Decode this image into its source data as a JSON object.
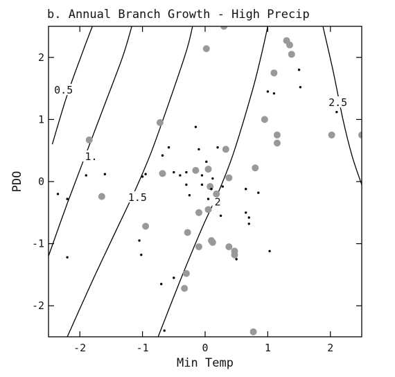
{
  "chart_data": {
    "type": "scatter",
    "title": "b. Annual Branch Growth - High Precip",
    "xlabel": "Min Temp",
    "ylabel": "PDO",
    "xlim": [
      -2.5,
      2.5
    ],
    "ylim": [
      -2.5,
      2.5
    ],
    "xticks": [
      -2,
      -1,
      0,
      1,
      2
    ],
    "yticks": [
      -2,
      -1,
      0,
      1,
      2
    ],
    "xtick_labels": [
      "-2",
      "-1",
      "0",
      "1",
      "2"
    ],
    "ytick_labels": [
      "-2",
      "-1",
      "0",
      "1",
      "2"
    ],
    "grid": false,
    "colors": {
      "large_points": "#999999",
      "small_points": "#000000",
      "contours": "#000000"
    },
    "contours": [
      {
        "label": "0.5",
        "label_at": [
          -2.26,
          1.45
        ],
        "points": [
          [
            -2.44,
            0.6
          ],
          [
            -2.2,
            1.4
          ],
          [
            -1.95,
            2.1
          ],
          [
            -1.8,
            2.5
          ]
        ]
      },
      {
        "label": "1.",
        "label_at": [
          -1.82,
          0.38
        ],
        "points": [
          [
            -2.5,
            -1.2
          ],
          [
            -2.2,
            -0.35
          ],
          [
            -1.9,
            0.45
          ],
          [
            -1.6,
            1.25
          ],
          [
            -1.32,
            2.0
          ],
          [
            -1.17,
            2.5
          ]
        ]
      },
      {
        "label": "1.5",
        "label_at": [
          -1.08,
          -0.28
        ],
        "points": [
          [
            -2.2,
            -2.5
          ],
          [
            -1.8,
            -1.6
          ],
          [
            -1.45,
            -0.85
          ],
          [
            -1.1,
            -0.1
          ],
          [
            -0.85,
            0.5
          ],
          [
            -0.55,
            1.35
          ],
          [
            -0.3,
            2.1
          ],
          [
            -0.2,
            2.5
          ]
        ]
      },
      {
        "label": "2",
        "label_at": [
          0.2,
          -0.35
        ],
        "points": [
          [
            -0.75,
            -2.5
          ],
          [
            -0.4,
            -1.6
          ],
          [
            -0.05,
            -0.75
          ],
          [
            0.2,
            -0.2
          ],
          [
            0.45,
            0.45
          ],
          [
            0.75,
            1.45
          ],
          [
            0.9,
            2.05
          ],
          [
            1.0,
            2.5
          ]
        ]
      },
      {
        "label": "2.5",
        "label_at": [
          2.12,
          1.25
        ],
        "points": [
          [
            1.88,
            2.5
          ],
          [
            2.05,
            1.75
          ],
          [
            2.2,
            1.0
          ],
          [
            2.35,
            0.4
          ],
          [
            2.5,
            -0.05
          ]
        ]
      }
    ],
    "series": [
      {
        "marker": "large",
        "points": [
          [
            -1.85,
            0.67
          ],
          [
            -1.65,
            -0.24
          ],
          [
            -0.72,
            0.95
          ],
          [
            -0.68,
            0.13
          ],
          [
            -0.95,
            -0.72
          ],
          [
            -0.15,
            0.18
          ],
          [
            0.05,
            0.2
          ],
          [
            0.08,
            -0.08
          ],
          [
            0.02,
            2.14
          ],
          [
            0.3,
            2.5
          ],
          [
            0.33,
            0.52
          ],
          [
            0.18,
            -0.2
          ],
          [
            0.05,
            -0.45
          ],
          [
            -0.1,
            -0.5
          ],
          [
            -0.28,
            -0.82
          ],
          [
            -0.1,
            -1.05
          ],
          [
            0.12,
            -0.98
          ],
          [
            0.38,
            -1.05
          ],
          [
            0.47,
            -1.12
          ],
          [
            0.47,
            -1.18
          ],
          [
            0.38,
            0.06
          ],
          [
            0.8,
            0.22
          ],
          [
            -0.3,
            -1.48
          ],
          [
            -0.33,
            -1.72
          ],
          [
            0.77,
            -2.42
          ],
          [
            0.95,
            1.0
          ],
          [
            1.1,
            1.75
          ],
          [
            1.15,
            0.75
          ],
          [
            1.15,
            0.62
          ],
          [
            1.3,
            2.27
          ],
          [
            1.35,
            2.2
          ],
          [
            1.38,
            2.05
          ],
          [
            2.02,
            0.75
          ],
          [
            2.5,
            0.75
          ],
          [
            0.1,
            -0.95
          ]
        ]
      },
      {
        "marker": "small",
        "points": [
          [
            -2.35,
            -0.2
          ],
          [
            -2.2,
            -0.28
          ],
          [
            -2.2,
            -1.22
          ],
          [
            -1.9,
            0.1
          ],
          [
            -1.6,
            0.12
          ],
          [
            -1.05,
            -0.95
          ],
          [
            -1.02,
            -1.18
          ],
          [
            -1.0,
            0.08
          ],
          [
            -0.95,
            0.12
          ],
          [
            -0.68,
            0.42
          ],
          [
            -0.58,
            0.55
          ],
          [
            -0.5,
            0.15
          ],
          [
            -0.3,
            0.15
          ],
          [
            -0.3,
            -0.05
          ],
          [
            -0.25,
            -0.22
          ],
          [
            -0.15,
            0.88
          ],
          [
            -0.1,
            0.52
          ],
          [
            -0.05,
            0.1
          ],
          [
            -0.05,
            -0.05
          ],
          [
            0.02,
            0.32
          ],
          [
            0.05,
            -0.28
          ],
          [
            0.1,
            -0.12
          ],
          [
            0.12,
            0.05
          ],
          [
            0.2,
            0.55
          ],
          [
            0.25,
            -0.55
          ],
          [
            0.28,
            -0.08
          ],
          [
            0.5,
            -1.25
          ],
          [
            0.65,
            -0.12
          ],
          [
            0.65,
            -0.5
          ],
          [
            0.7,
            -0.68
          ],
          [
            0.7,
            -0.58
          ],
          [
            0.85,
            -0.18
          ],
          [
            1.0,
            1.45
          ],
          [
            1.03,
            -1.12
          ],
          [
            1.1,
            1.42
          ],
          [
            1.5,
            1.8
          ],
          [
            1.52,
            1.52
          ],
          [
            -0.7,
            -1.65
          ],
          [
            -0.5,
            -1.55
          ],
          [
            -0.4,
            0.1
          ],
          [
            -0.65,
            -2.4
          ],
          [
            2.1,
            1.12
          ]
        ]
      }
    ]
  }
}
